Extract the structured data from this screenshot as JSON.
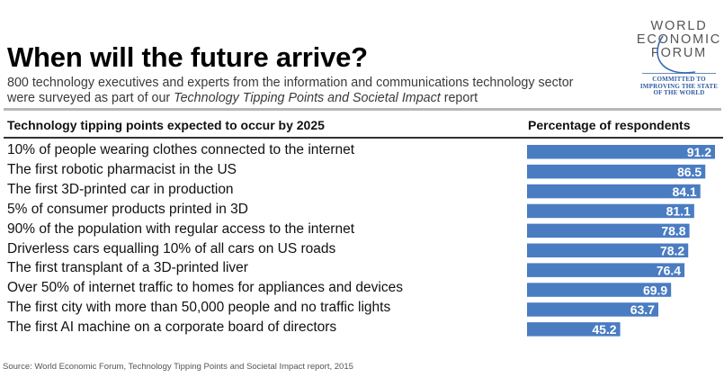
{
  "header": {
    "title": "When will the future arrive?",
    "subtitle_line1": "800 technology executives and experts from the information and communications technology sector",
    "subtitle_line2_prefix": "were surveyed as part of our ",
    "subtitle_line2_italic": "Technology Tipping Points and Societal Impact",
    "subtitle_line2_suffix": " report"
  },
  "logo": {
    "line1": "WORLD",
    "line2": "ECONOMIC",
    "line3": "FORUM",
    "tagline1": "COMMITTED TO",
    "tagline2": "IMPROVING THE STATE",
    "tagline3": "OF THE WORLD"
  },
  "colors": {
    "bar": "#4a7cc2",
    "bar_label": "#ffffff"
  },
  "chart_data": {
    "type": "bar",
    "orientation": "horizontal",
    "title": "When will the future arrive?",
    "xlabel": "Percentage of respondents",
    "ylabel": "Technology tipping points expected to occur by 2025",
    "categories": [
      "10% of people wearing clothes connected to the internet",
      "The first robotic pharmacist in the US",
      "The first 3D-printed car in production",
      "5% of consumer products printed in 3D",
      "90% of the population with regular access to the internet",
      "Driverless cars equalling 10% of all cars on US roads",
      "The first transplant of a 3D-printed liver",
      "Over 50% of internet traffic to homes for appliances and devices",
      "The first city with more than 50,000 people and no traffic lights",
      "The first AI machine on a corporate board of directors"
    ],
    "values": [
      91.2,
      86.5,
      84.1,
      81.1,
      78.8,
      78.2,
      76.4,
      69.9,
      63.7,
      45.2
    ],
    "value_labels": [
      "91.2",
      "86.5",
      "84.1",
      "81.1",
      "78.8",
      "78.2",
      "76.4",
      "69.9",
      "63.7",
      "45.2"
    ],
    "xlim": [
      0,
      91.2
    ],
    "grid": false,
    "legend": "none",
    "column_headers": {
      "left": "Technology tipping points expected to occur by 2025",
      "right": "Percentage of respondents"
    }
  },
  "footer": {
    "source": "Source: World Economic Forum, Technology Tipping Points and Societal Impact report, 2015"
  }
}
